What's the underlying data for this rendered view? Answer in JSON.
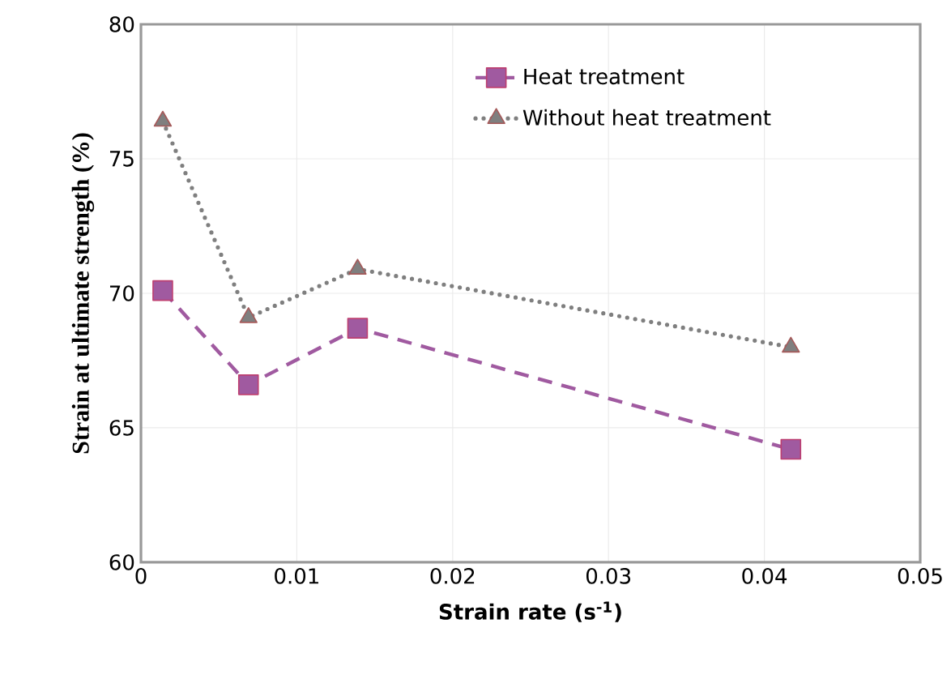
{
  "chart_data": {
    "type": "line",
    "xlabel": "Strain rate (s$^{-1}$)",
    "ylabel": "Strain at ultimate strength (%)",
    "x": [
      0.0014,
      0.0069,
      0.0139,
      0.0417
    ],
    "series": [
      {
        "name": "Heat treatment",
        "color": "#a05aa0",
        "values": [
          70.1,
          66.6,
          68.7,
          64.2
        ],
        "marker": "square",
        "line_style": "dashed"
      },
      {
        "name": "Without heat treatment",
        "color": "#7f7f7f",
        "values": [
          76.4,
          69.1,
          70.9,
          68.0
        ],
        "marker": "triangle",
        "line_style": "dotted"
      }
    ],
    "xlim": [
      0,
      0.05
    ],
    "xticks": [
      0,
      0.01,
      0.02,
      0.03,
      0.04,
      0.05
    ],
    "ylim": [
      60,
      80
    ],
    "yticks": [
      60,
      65,
      70,
      75,
      80
    ],
    "grid": true,
    "legend": "top right"
  }
}
